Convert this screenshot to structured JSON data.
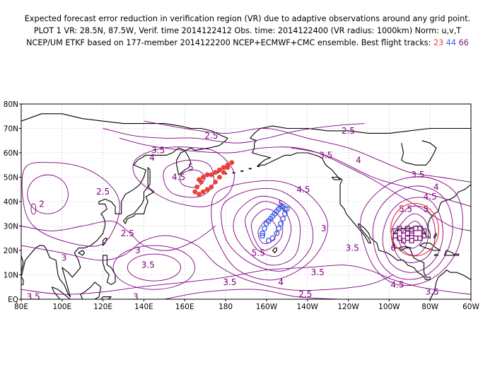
{
  "header": {
    "line1": "Expected forecast error reduction in verification region (VR) due to adaptive observations around any grid point.",
    "line2": "PLOT 1 VR: 28.5N, 87.5W, Verif. time 2014122412 Obs. time: 2014122400 (VR radius: 1000km) Norm: u,v,T",
    "line3_prefix": "NCEP/UM ETKF based on 177-member 2014122200 NCEP+ECMWF+CMC ensemble. Best flight tracks:",
    "track_ids": [
      "23",
      "44",
      "66"
    ]
  },
  "map": {
    "lat_labels": [
      "80N",
      "70N",
      "60N",
      "50N",
      "40N",
      "30N",
      "20N",
      "10N",
      "EQ"
    ],
    "lon_labels": [
      "80E",
      "100E",
      "120E",
      "140E",
      "160E",
      "180",
      "160W",
      "140W",
      "120W",
      "100W",
      "80W",
      "60W"
    ],
    "lon_range": [
      80,
      300
    ],
    "lat_range": [
      0,
      80
    ],
    "colors": {
      "contour": "#800080",
      "track_23": "#e8413a",
      "track_44": "#3b58e6",
      "track_66": "#7a1a7a",
      "verification_circle": "#e8413a",
      "coast": "#000000",
      "grid": "#888888"
    },
    "contour_labels": [
      {
        "text": "2.5",
        "lon": 173,
        "lat": 67
      },
      {
        "text": "2.5",
        "lon": 240,
        "lat": 69
      },
      {
        "text": "3.5",
        "lon": 147,
        "lat": 61
      },
      {
        "text": "4",
        "lon": 144,
        "lat": 58
      },
      {
        "text": "3.5",
        "lon": 229,
        "lat": 59
      },
      {
        "text": "4",
        "lon": 245,
        "lat": 57
      },
      {
        "text": "4.5",
        "lon": 157,
        "lat": 50
      },
      {
        "text": "5",
        "lon": 163,
        "lat": 54
      },
      {
        "text": "2",
        "lon": 90,
        "lat": 39
      },
      {
        "text": "2.5",
        "lon": 120,
        "lat": 44
      },
      {
        "text": "4.5",
        "lon": 218,
        "lat": 45
      },
      {
        "text": "5",
        "lon": 207,
        "lat": 39
      },
      {
        "text": "3.5",
        "lon": 274,
        "lat": 51
      },
      {
        "text": "4",
        "lon": 283,
        "lat": 46
      },
      {
        "text": "4.5",
        "lon": 280,
        "lat": 42
      },
      {
        "text": "5.5",
        "lon": 268,
        "lat": 37
      },
      {
        "text": "5",
        "lon": 278,
        "lat": 37
      },
      {
        "text": "2.5",
        "lon": 132,
        "lat": 27
      },
      {
        "text": "3",
        "lon": 228,
        "lat": 29
      },
      {
        "text": "3.5",
        "lon": 242,
        "lat": 21
      },
      {
        "text": "6",
        "lon": 262,
        "lat": 21
      },
      {
        "text": "5.5",
        "lon": 196,
        "lat": 19
      },
      {
        "text": "3",
        "lon": 101,
        "lat": 17
      },
      {
        "text": "3",
        "lon": 137,
        "lat": 20
      },
      {
        "text": "3.5",
        "lon": 142,
        "lat": 14
      },
      {
        "text": "4",
        "lon": 207,
        "lat": 7
      },
      {
        "text": "3.5",
        "lon": 182,
        "lat": 7
      },
      {
        "text": "3.5",
        "lon": 225,
        "lat": 11
      },
      {
        "text": "4.5",
        "lon": 264,
        "lat": 6
      },
      {
        "text": "3.5",
        "lon": 281,
        "lat": 3
      },
      {
        "text": "3.5",
        "lon": 86,
        "lat": 1
      },
      {
        "text": "3",
        "lon": 136,
        "lat": 1
      },
      {
        "text": "2.5",
        "lon": 219,
        "lat": 2
      }
    ],
    "verification_circle": {
      "center_lon": 272.5,
      "center_lat": 28.5,
      "radius_deg": 9
    }
  }
}
